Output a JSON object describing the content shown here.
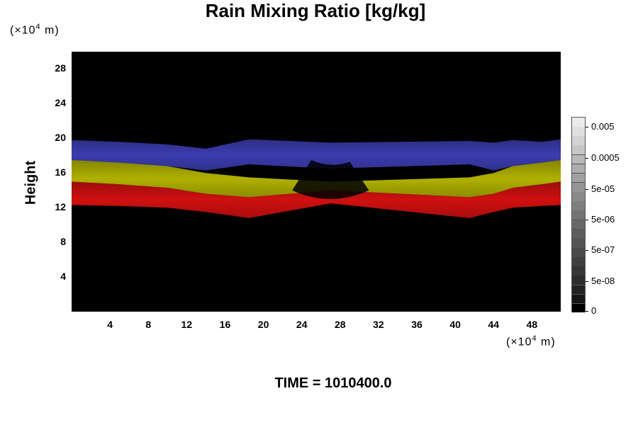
{
  "chart_data": {
    "type": "heatmap",
    "title": "Rain Mixing Ratio [kg/kg]",
    "ylabel": "Height",
    "xlabel": "",
    "x_unit": "(×10⁴ m)",
    "y_unit": "(×10⁴ m)",
    "x_unit_base": "(×10",
    "x_unit_exp": "4",
    "x_unit_tail": " m)",
    "xlim": [
      0,
      51
    ],
    "ylim": [
      0,
      30
    ],
    "x_ticks": [
      "4",
      "8",
      "12",
      "16",
      "20",
      "24",
      "28",
      "32",
      "36",
      "40",
      "44",
      "48"
    ],
    "y_ticks": [
      "4",
      "8",
      "12",
      "16",
      "20",
      "24",
      "28"
    ],
    "colorbar_labels": [
      "0.005",
      "0.0005",
      "5e-05",
      "5e-06",
      "5e-07",
      "5e-08",
      "0"
    ],
    "colorbar_colors": [
      "#000000",
      "#161616",
      "#222222",
      "#2c2c2c",
      "#363636",
      "#404040",
      "#4a4a4a",
      "#545454",
      "#5e5e5e",
      "#686868",
      "#737373",
      "#7e7e7e",
      "#898989",
      "#959595",
      "#a1a1a1",
      "#adadad",
      "#b9b9b9",
      "#c6c6c6",
      "#d3d3d3",
      "#e0e0e0",
      "#ebebeb"
    ],
    "bands": [
      {
        "name": "blue",
        "color": "#3c3cb0",
        "top": [
          19.8,
          19.6,
          19.3,
          18.8,
          19.9,
          19.5,
          19.7,
          19.5,
          19.8,
          19.6,
          19.9
        ],
        "bottom": [
          17.5,
          17.2,
          16.8,
          16.3,
          17.0,
          16.5,
          17.0,
          16.3,
          16.8,
          17.2,
          17.5
        ]
      },
      {
        "name": "yellow",
        "color": "#b0b000",
        "top": [
          17.5,
          17.2,
          16.8,
          16.0,
          15.5,
          15.0,
          15.5,
          16.0,
          16.8,
          17.2,
          17.5
        ],
        "bottom": [
          15.0,
          14.7,
          14.3,
          13.6,
          13.2,
          14.0,
          13.2,
          13.6,
          14.3,
          14.7,
          15.0
        ]
      },
      {
        "name": "red",
        "color": "#d01010",
        "top": [
          15.0,
          14.7,
          14.3,
          13.6,
          13.2,
          14.0,
          13.2,
          13.6,
          14.3,
          14.7,
          15.0
        ],
        "bottom": [
          12.3,
          12.2,
          12.0,
          11.5,
          10.8,
          12.5,
          10.8,
          11.5,
          12.0,
          12.2,
          12.3
        ]
      }
    ],
    "band_x": [
      0,
      5,
      10,
      14,
      18.5,
      27,
      41.5,
      44,
      46,
      49,
      51
    ],
    "time_label": "TIME = 1010400.0"
  }
}
